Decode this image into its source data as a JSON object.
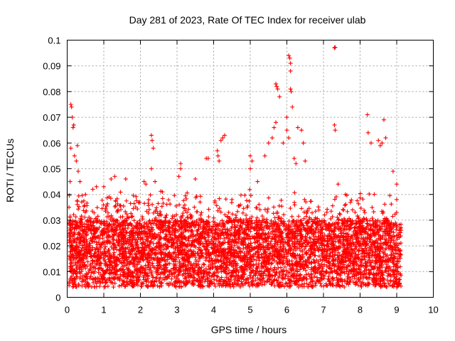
{
  "chart_data": {
    "type": "scatter",
    "title": "Day 281 of 2023, Rate Of TEC Index for receiver ulab",
    "xlabel": "GPS time / hours",
    "ylabel": "ROTI / TECUs",
    "xlim": [
      0,
      10
    ],
    "ylim": [
      0,
      0.1
    ],
    "x_ticks": [
      "0",
      "1",
      "2",
      "3",
      "4",
      "5",
      "6",
      "7",
      "8",
      "9",
      "10"
    ],
    "y_ticks": [
      "0",
      "0.01",
      "0.02",
      "0.03",
      "0.04",
      "0.05",
      "0.06",
      "0.07",
      "0.08",
      "0.09",
      "0.1"
    ],
    "grid": true,
    "marker": "+",
    "color": "#ff0000",
    "series": [
      {
        "points": [
          [
            0.05,
            0.035
          ],
          [
            0.08,
            0.045
          ],
          [
            0.1,
            0.058
          ],
          [
            0.1,
            0.075
          ],
          [
            0.12,
            0.074
          ],
          [
            0.14,
            0.07
          ],
          [
            0.16,
            0.066
          ],
          [
            0.18,
            0.067
          ],
          [
            0.2,
            0.055
          ],
          [
            0.25,
            0.053
          ],
          [
            0.28,
            0.059
          ],
          [
            0.3,
            0.049
          ],
          [
            0.35,
            0.045
          ],
          [
            0.5,
            0.04
          ],
          [
            0.7,
            0.042
          ],
          [
            0.8,
            0.043
          ],
          [
            1.0,
            0.043
          ],
          [
            1.2,
            0.046
          ],
          [
            1.3,
            0.047
          ],
          [
            1.6,
            0.046
          ],
          [
            2.1,
            0.045
          ],
          [
            2.15,
            0.044
          ],
          [
            2.3,
            0.063
          ],
          [
            2.32,
            0.061
          ],
          [
            2.35,
            0.058
          ],
          [
            2.3,
            0.05
          ],
          [
            2.4,
            0.045
          ],
          [
            2.6,
            0.041
          ],
          [
            3.1,
            0.052
          ],
          [
            3.1,
            0.05
          ],
          [
            3.05,
            0.047
          ],
          [
            3.5,
            0.046
          ],
          [
            3.8,
            0.054
          ],
          [
            3.85,
            0.054
          ],
          [
            4.1,
            0.057
          ],
          [
            4.12,
            0.055
          ],
          [
            4.15,
            0.053
          ],
          [
            4.2,
            0.061
          ],
          [
            4.25,
            0.062
          ],
          [
            4.3,
            0.063
          ],
          [
            4.5,
            0.038
          ],
          [
            5.0,
            0.055
          ],
          [
            5.05,
            0.053
          ],
          [
            5.0,
            0.05
          ],
          [
            5.2,
            0.045
          ],
          [
            5.4,
            0.055
          ],
          [
            5.5,
            0.06
          ],
          [
            5.6,
            0.062
          ],
          [
            5.65,
            0.066
          ],
          [
            5.7,
            0.068
          ],
          [
            5.7,
            0.083
          ],
          [
            5.72,
            0.082
          ],
          [
            5.75,
            0.081
          ],
          [
            5.8,
            0.078
          ],
          [
            5.9,
            0.06
          ],
          [
            6.0,
            0.07
          ],
          [
            6.0,
            0.065
          ],
          [
            6.05,
            0.062
          ],
          [
            6.05,
            0.094
          ],
          [
            6.08,
            0.093
          ],
          [
            6.1,
            0.091
          ],
          [
            6.1,
            0.088
          ],
          [
            6.1,
            0.081
          ],
          [
            6.12,
            0.08
          ],
          [
            6.15,
            0.074
          ],
          [
            6.2,
            0.054
          ],
          [
            6.25,
            0.052
          ],
          [
            6.3,
            0.066
          ],
          [
            6.4,
            0.065
          ],
          [
            6.45,
            0.06
          ],
          [
            6.5,
            0.053
          ],
          [
            7.3,
            0.067
          ],
          [
            7.32,
            0.065
          ],
          [
            7.3,
            0.097
          ],
          [
            7.32,
            0.0972
          ],
          [
            7.4,
            0.044
          ],
          [
            7.6,
            0.04
          ],
          [
            8.2,
            0.071
          ],
          [
            8.22,
            0.064
          ],
          [
            8.3,
            0.06
          ],
          [
            8.5,
            0.061
          ],
          [
            8.55,
            0.059
          ],
          [
            8.6,
            0.06
          ],
          [
            8.65,
            0.069
          ],
          [
            8.7,
            0.062
          ],
          [
            8.9,
            0.049
          ],
          [
            9.0,
            0.044
          ],
          [
            9.0,
            0.038
          ]
        ]
      }
    ]
  }
}
